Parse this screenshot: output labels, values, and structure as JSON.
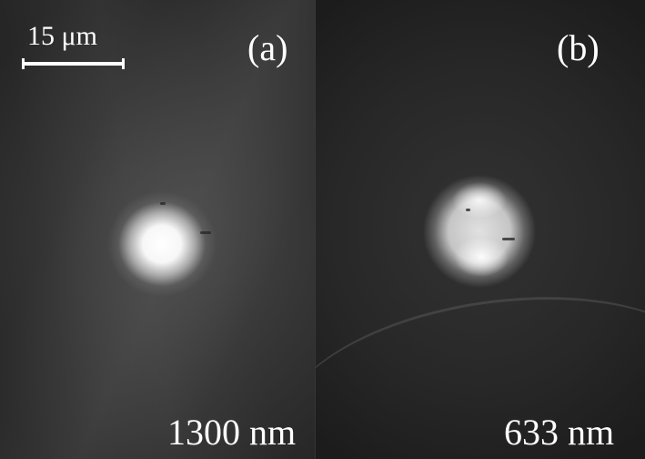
{
  "scale_bar": {
    "label": "15 μm"
  },
  "panels": [
    {
      "label": "(a)",
      "wavelength": "1300 nm"
    },
    {
      "label": "(b)",
      "wavelength": "633 nm"
    }
  ]
}
